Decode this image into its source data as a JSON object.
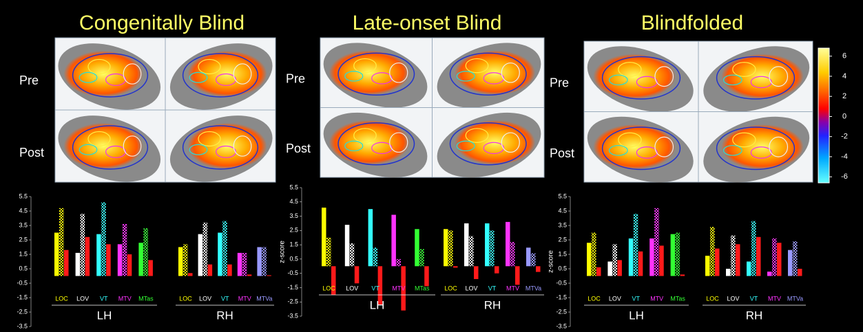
{
  "colorbar": {
    "lim": [
      -6.6,
      6.8
    ],
    "ticks": [
      6,
      4,
      2,
      0,
      -2,
      -4,
      -6
    ]
  },
  "panels": [
    {
      "title": "Congenitally Blind",
      "rows": [
        "Pre",
        "Post"
      ],
      "chart": {
        "type": "bar",
        "ylim": [
          -3.5,
          5.5
        ],
        "yticks": [
          5.5,
          4.5,
          3.5,
          2.5,
          1.5,
          0.5,
          -0.5,
          -1.5,
          -2.5,
          -3.5
        ],
        "groups": [
          {
            "name": "LH",
            "regions": [
              {
                "name": "LOC",
                "color": "#ffff00",
                "values": [
                  3.0,
                  4.7,
                  1.8
                ]
              },
              {
                "name": "LOV",
                "color": "#ffffff",
                "values": [
                  1.6,
                  4.3,
                  2.7
                ]
              },
              {
                "name": "VT",
                "color": "#33ffff",
                "values": [
                  2.9,
                  5.1,
                  2.2
                ]
              },
              {
                "name": "MTV",
                "color": "#ff33ff",
                "values": [
                  2.2,
                  3.6,
                  1.5
                ]
              },
              {
                "name": "MTas",
                "color": "#33ff33",
                "values": [
                  2.3,
                  3.3,
                  1.1
                ]
              }
            ]
          },
          {
            "name": "RH",
            "regions": [
              {
                "name": "LOC",
                "color": "#ffff00",
                "values": [
                  2.0,
                  2.2,
                  0.2
                ]
              },
              {
                "name": "LOV",
                "color": "#ffffff",
                "values": [
                  2.9,
                  3.7,
                  0.8
                ]
              },
              {
                "name": "VT",
                "color": "#33ffff",
                "values": [
                  3.0,
                  3.8,
                  0.8
                ]
              },
              {
                "name": "MTV",
                "color": "#ff33ff",
                "values": [
                  1.6,
                  1.6,
                  0.1
                ]
              },
              {
                "name": "MTVa",
                "color": "#9999ff",
                "values": [
                  2.0,
                  2.0,
                  0.05
                ]
              }
            ]
          }
        ]
      }
    },
    {
      "title": "Late-onset Blind",
      "rows": [
        "Pre",
        "Post"
      ],
      "chart": {
        "type": "bar",
        "ylabel": "z-score",
        "ylim": [
          -3.5,
          5.5
        ],
        "yticks": [
          5.5,
          4.5,
          3.5,
          2.5,
          1.5,
          0.5,
          -0.5,
          -1.5,
          -2.5,
          -3.5
        ],
        "groups": [
          {
            "name": "LH",
            "regions": [
              {
                "name": "LOC",
                "color": "#ffff00",
                "values": [
                  4.1,
                  2.0,
                  -2.0
                ]
              },
              {
                "name": "LOV",
                "color": "#ffffff",
                "values": [
                  2.9,
                  1.6,
                  -1.2
                ]
              },
              {
                "name": "VT",
                "color": "#33ffff",
                "values": [
                  4.0,
                  1.3,
                  -2.7
                ]
              },
              {
                "name": "MTV",
                "color": "#ff33ff",
                "values": [
                  3.6,
                  0.5,
                  -3.1
                ]
              },
              {
                "name": "MTas",
                "color": "#33ff33",
                "values": [
                  2.6,
                  1.2,
                  -1.4
                ]
              }
            ]
          },
          {
            "name": "RH",
            "regions": [
              {
                "name": "LOC",
                "color": "#ffff00",
                "values": [
                  2.6,
                  2.5,
                  -0.1
                ]
              },
              {
                "name": "LOV",
                "color": "#ffffff",
                "values": [
                  3.0,
                  2.1,
                  -0.9
                ]
              },
              {
                "name": "VT",
                "color": "#33ffff",
                "values": [
                  3.0,
                  2.5,
                  -0.5
                ]
              },
              {
                "name": "MTV",
                "color": "#ff33ff",
                "values": [
                  3.1,
                  1.7,
                  -1.3
                ]
              },
              {
                "name": "MTVa",
                "color": "#9999ff",
                "values": [
                  1.3,
                  0.9,
                  -0.4
                ]
              }
            ]
          }
        ]
      }
    },
    {
      "title": "Blindfolded",
      "rows": [
        "Pre",
        "Post"
      ],
      "chart": {
        "type": "bar",
        "ylabel": "z-score",
        "ylim": [
          -3.5,
          5.5
        ],
        "yticks": [
          5.5,
          4.5,
          3.5,
          2.5,
          1.5,
          0.5,
          -0.5,
          -1.5,
          -2.5,
          -3.5
        ],
        "groups": [
          {
            "name": "LH",
            "regions": [
              {
                "name": "LOC",
                "color": "#ffff00",
                "values": [
                  2.3,
                  3.0,
                  0.6
                ]
              },
              {
                "name": "LOV",
                "color": "#ffffff",
                "values": [
                  1.0,
                  2.2,
                  1.1
                ]
              },
              {
                "name": "VT",
                "color": "#33ffff",
                "values": [
                  2.6,
                  4.3,
                  1.7
                ]
              },
              {
                "name": "MTV",
                "color": "#ff33ff",
                "values": [
                  2.6,
                  4.7,
                  2.1
                ]
              },
              {
                "name": "MTas",
                "color": "#33ff33",
                "values": [
                  2.9,
                  3.0,
                  0.1
                ]
              }
            ]
          },
          {
            "name": "RH",
            "regions": [
              {
                "name": "LOC",
                "color": "#ffff00",
                "values": [
                  1.4,
                  3.4,
                  1.9
                ]
              },
              {
                "name": "LOV",
                "color": "#ffffff",
                "values": [
                  0.5,
                  2.8,
                  2.2
                ]
              },
              {
                "name": "VT",
                "color": "#33ffff",
                "values": [
                  1.0,
                  3.8,
                  2.7
                ]
              },
              {
                "name": "MTV",
                "color": "#ff33ff",
                "values": [
                  0.3,
                  2.6,
                  2.3
                ]
              },
              {
                "name": "MTVa",
                "color": "#9999ff",
                "values": [
                  1.8,
                  2.4,
                  0.5
                ]
              }
            ]
          }
        ]
      }
    }
  ]
}
